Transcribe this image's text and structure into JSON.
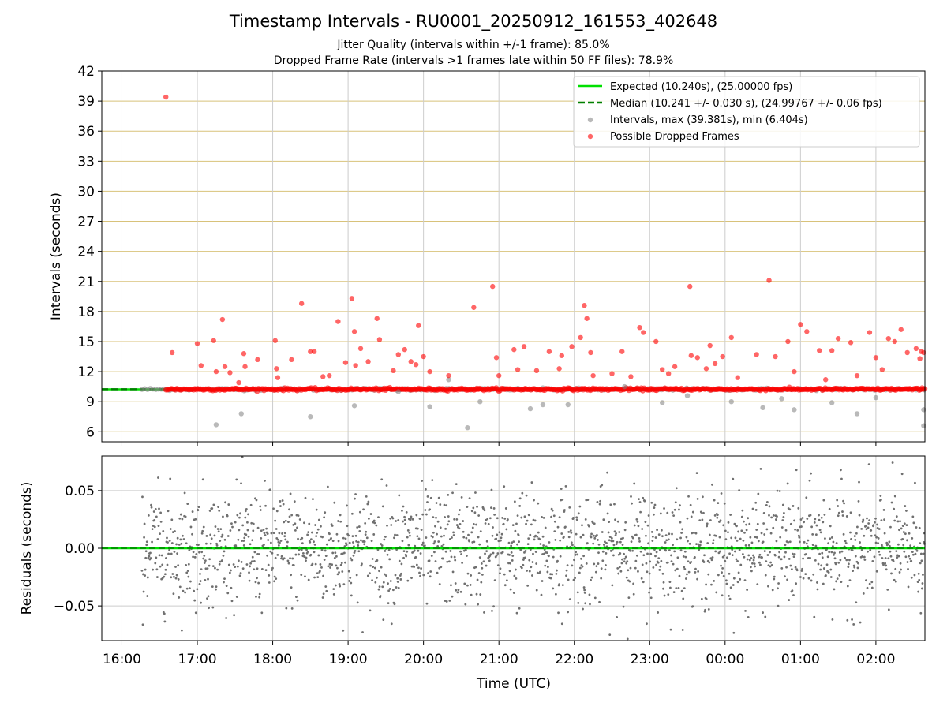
{
  "figure": {
    "title": "Timestamp Intervals - RU0001_20250912_161553_402648",
    "subtitle_1": "Jitter Quality (intervals within +/-1 frame): 85.0%",
    "subtitle_2": "Dropped Frame Rate (intervals >1 frames late within 50 FF files): 78.9%"
  },
  "chart_data": [
    {
      "type": "scatter",
      "title": "",
      "xlabel": "",
      "ylabel": "Intervals (seconds)",
      "x_axis": "time (UTC), 2025-09-12 to 2025-09-13",
      "xlim": [
        "15:44",
        "02:39"
      ],
      "ylim": [
        5,
        42
      ],
      "yticks": [
        6,
        9,
        12,
        15,
        18,
        21,
        24,
        27,
        30,
        33,
        36,
        39,
        42
      ],
      "grid": true,
      "legend_position": "upper-right",
      "expected_line": {
        "name": "Expected (10.240s), (25.00000 fps)",
        "y": 10.24,
        "color": "#00e000",
        "style": "solid"
      },
      "median_line": {
        "name": "Median (10.241 +/- 0.030 s), (24.99767 +/- 0.06 fps)",
        "y": 10.241,
        "color": "#008000",
        "style": "dashed"
      },
      "series": [
        {
          "name": "Intervals, max (39.381s), min (6.404s)",
          "color": "#808080",
          "dense_band": {
            "from": "16:16",
            "to": "02:39",
            "y": 10.24
          },
          "points": [
            [
              "17:15",
              6.7
            ],
            [
              "17:35",
              7.8
            ],
            [
              "18:30",
              7.5
            ],
            [
              "19:05",
              8.6
            ],
            [
              "19:40",
              10.0
            ],
            [
              "20:05",
              8.5
            ],
            [
              "20:20",
              11.2
            ],
            [
              "20:35",
              6.4
            ],
            [
              "20:45",
              9.0
            ],
            [
              "21:25",
              8.3
            ],
            [
              "21:35",
              8.7
            ],
            [
              "21:55",
              8.7
            ],
            [
              "22:40",
              10.5
            ],
            [
              "23:10",
              8.9
            ],
            [
              "23:30",
              9.6
            ],
            [
              "00:05",
              9.0
            ],
            [
              "00:30",
              8.4
            ],
            [
              "00:45",
              9.3
            ],
            [
              "00:55",
              8.2
            ],
            [
              "01:25",
              8.9
            ],
            [
              "01:45",
              7.8
            ],
            [
              "02:00",
              9.4
            ],
            [
              "02:38",
              8.2
            ],
            [
              "02:38",
              6.6
            ]
          ]
        },
        {
          "name": "Possible Dropped Frames",
          "color": "#ff0000",
          "dense_band": {
            "from": "16:35",
            "to": "02:39",
            "y": 10.24
          },
          "points": [
            [
              "16:35",
              39.4
            ],
            [
              "16:40",
              13.9
            ],
            [
              "17:00",
              14.8
            ],
            [
              "17:03",
              12.6
            ],
            [
              "17:13",
              15.1
            ],
            [
              "17:15",
              12.0
            ],
            [
              "17:20",
              17.2
            ],
            [
              "17:22",
              12.5
            ],
            [
              "17:26",
              11.9
            ],
            [
              "17:33",
              10.9
            ],
            [
              "17:37",
              13.8
            ],
            [
              "17:38",
              12.5
            ],
            [
              "17:48",
              13.2
            ],
            [
              "18:02",
              15.1
            ],
            [
              "18:03",
              12.3
            ],
            [
              "18:04",
              11.4
            ],
            [
              "18:15",
              13.2
            ],
            [
              "18:23",
              18.8
            ],
            [
              "18:30",
              14.0
            ],
            [
              "18:33",
              14.0
            ],
            [
              "18:40",
              11.5
            ],
            [
              "18:45",
              11.6
            ],
            [
              "18:52",
              17.0
            ],
            [
              "18:58",
              12.9
            ],
            [
              "19:03",
              19.3
            ],
            [
              "19:05",
              16.0
            ],
            [
              "19:06",
              12.6
            ],
            [
              "19:10",
              14.3
            ],
            [
              "19:16",
              13.0
            ],
            [
              "19:23",
              17.3
            ],
            [
              "19:25",
              15.2
            ],
            [
              "19:36",
              12.1
            ],
            [
              "19:40",
              13.7
            ],
            [
              "19:45",
              14.2
            ],
            [
              "19:50",
              13.0
            ],
            [
              "19:54",
              12.7
            ],
            [
              "19:56",
              16.6
            ],
            [
              "20:00",
              13.5
            ],
            [
              "20:05",
              12.0
            ],
            [
              "20:20",
              11.6
            ],
            [
              "20:40",
              18.4
            ],
            [
              "20:55",
              20.5
            ],
            [
              "20:58",
              13.4
            ],
            [
              "21:00",
              11.6
            ],
            [
              "21:12",
              14.2
            ],
            [
              "21:15",
              12.2
            ],
            [
              "21:20",
              14.5
            ],
            [
              "21:30",
              12.1
            ],
            [
              "21:40",
              14.0
            ],
            [
              "21:48",
              12.3
            ],
            [
              "21:50",
              13.6
            ],
            [
              "21:58",
              14.5
            ],
            [
              "22:05",
              15.4
            ],
            [
              "22:08",
              18.6
            ],
            [
              "22:10",
              17.3
            ],
            [
              "22:13",
              13.9
            ],
            [
              "22:15",
              11.6
            ],
            [
              "22:30",
              11.8
            ],
            [
              "22:38",
              14.0
            ],
            [
              "22:45",
              11.5
            ],
            [
              "22:52",
              16.4
            ],
            [
              "22:55",
              15.9
            ],
            [
              "23:05",
              15.0
            ],
            [
              "23:10",
              12.2
            ],
            [
              "23:15",
              11.8
            ],
            [
              "23:20",
              12.5
            ],
            [
              "23:32",
              20.5
            ],
            [
              "23:33",
              13.6
            ],
            [
              "23:38",
              13.4
            ],
            [
              "23:45",
              12.3
            ],
            [
              "23:48",
              14.6
            ],
            [
              "23:52",
              12.8
            ],
            [
              "23:58",
              13.5
            ],
            [
              "00:05",
              15.4
            ],
            [
              "00:10",
              11.4
            ],
            [
              "00:25",
              13.7
            ],
            [
              "00:35",
              21.1
            ],
            [
              "00:40",
              13.5
            ],
            [
              "00:50",
              15.0
            ],
            [
              "00:55",
              12.0
            ],
            [
              "01:00",
              16.7
            ],
            [
              "01:05",
              16.0
            ],
            [
              "01:15",
              14.1
            ],
            [
              "01:20",
              11.2
            ],
            [
              "01:25",
              14.1
            ],
            [
              "01:30",
              15.3
            ],
            [
              "01:40",
              14.9
            ],
            [
              "01:45",
              11.6
            ],
            [
              "01:55",
              15.9
            ],
            [
              "02:00",
              13.4
            ],
            [
              "02:05",
              12.2
            ],
            [
              "02:10",
              15.3
            ],
            [
              "02:15",
              15.0
            ],
            [
              "02:20",
              16.2
            ],
            [
              "02:25",
              13.9
            ],
            [
              "02:32",
              14.3
            ],
            [
              "02:35",
              13.3
            ],
            [
              "02:36",
              14.0
            ],
            [
              "02:38",
              13.9
            ]
          ]
        }
      ]
    },
    {
      "type": "scatter",
      "title": "",
      "xlabel": "Time (UTC)",
      "ylabel": "Residuals (seconds)",
      "xlim": [
        "15:44",
        "02:39"
      ],
      "ylim": [
        -0.08,
        0.08
      ],
      "yticks": [
        -0.05,
        0.0,
        0.05
      ],
      "ytick_labels": [
        "−0.05",
        "0.00",
        "0.05"
      ],
      "xticks": [
        "16:00",
        "17:00",
        "18:00",
        "19:00",
        "20:00",
        "21:00",
        "22:00",
        "23:00",
        "00:00",
        "01:00",
        "02:00"
      ],
      "grid": true,
      "zero_line": {
        "y": 0.0,
        "color": "#00e000"
      },
      "series": [
        {
          "name": "",
          "color": "#707070",
          "distribution": {
            "from": "16:16",
            "to": "02:39",
            "mean": 0.0,
            "std": 0.025,
            "clip": [
              -0.08,
              0.08
            ]
          }
        }
      ]
    }
  ]
}
